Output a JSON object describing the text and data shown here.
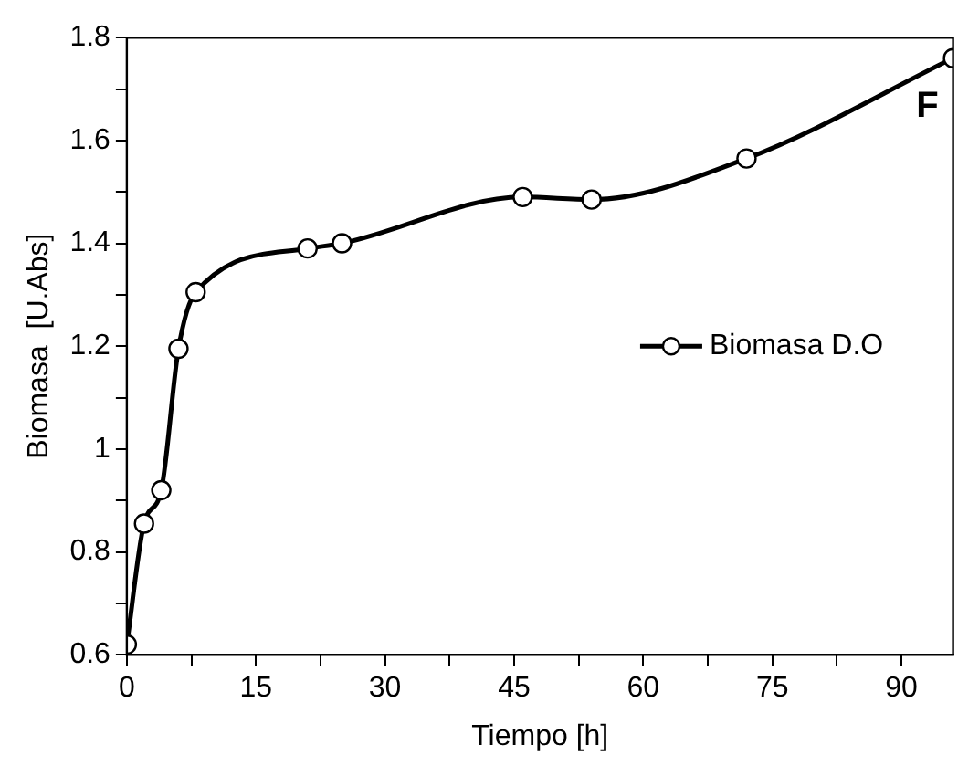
{
  "chart_data": {
    "type": "line",
    "xlabel": "Tiempo [h]",
    "ylabel": "Biomasa  [U.Abs]",
    "x": [
      0,
      2,
      4,
      6,
      8,
      21,
      25,
      46,
      54,
      72,
      96
    ],
    "series": [
      {
        "name": "Biomasa D.O",
        "color": "#000000",
        "values": [
          0.62,
          0.855,
          0.92,
          1.195,
          1.305,
          1.39,
          1.4,
          1.49,
          1.485,
          1.565,
          1.76
        ]
      }
    ],
    "xlim": [
      0,
      96
    ],
    "xticks": [
      0,
      {
        "value": 7.5,
        "label": null
      },
      15,
      {
        "value": 22.5,
        "label": null
      },
      30,
      {
        "value": 37.5,
        "label": null
      },
      45,
      {
        "value": 52.5,
        "label": null
      },
      60,
      {
        "value": 67.5,
        "label": null
      },
      75,
      {
        "value": 82.5,
        "label": null
      },
      90
    ],
    "ylim": [
      0.6,
      1.8
    ],
    "yticks": [
      0.6,
      {
        "value": 0.7,
        "label": null
      },
      0.8,
      {
        "value": 0.9,
        "label": null
      },
      1,
      {
        "value": 1.1,
        "label": null
      },
      1.2,
      {
        "value": 1.3,
        "label": null
      },
      1.4,
      {
        "value": 1.5,
        "label": null
      },
      1.6,
      {
        "value": 1.7,
        "label": null
      },
      1.8
    ],
    "annotations": [
      "F"
    ],
    "grid": false,
    "legend": "right",
    "marker": "circle",
    "line_style": "solid"
  }
}
